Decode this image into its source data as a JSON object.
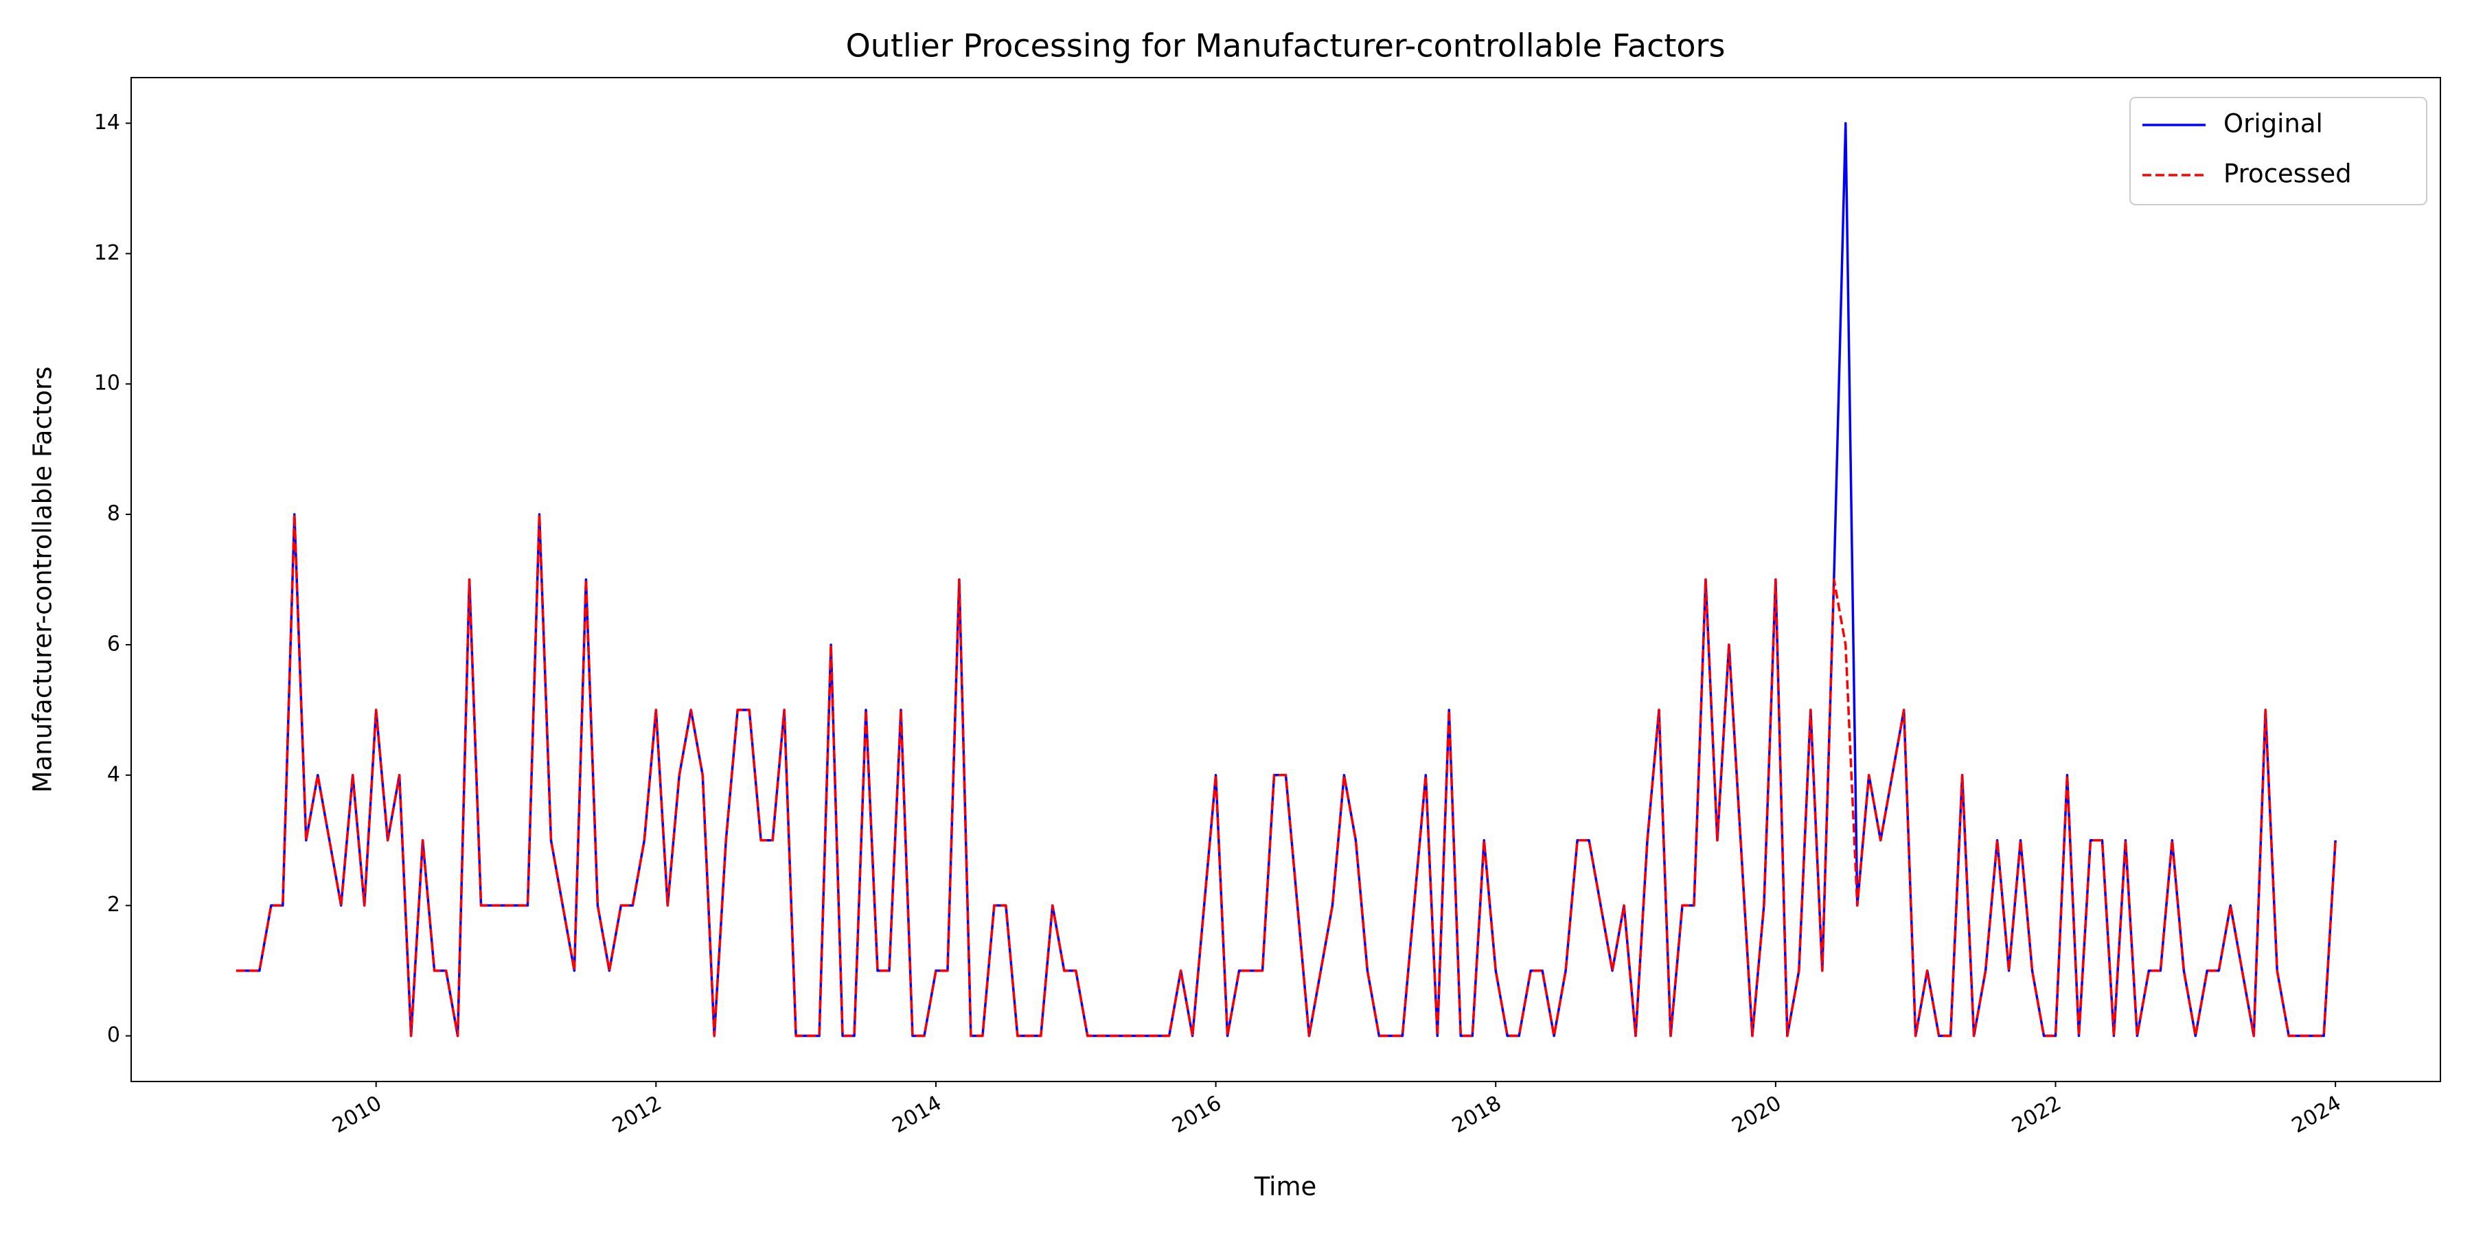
{
  "chart_data": {
    "type": "line",
    "title": "Outlier Processing for Manufacturer-controllable Factors",
    "xlabel": "Time",
    "ylabel": "Manufacturer-controllable Factors",
    "x": [
      "2009-01",
      "2009-02",
      "2009-03",
      "2009-04",
      "2009-05",
      "2009-06",
      "2009-07",
      "2009-08",
      "2009-09",
      "2009-10",
      "2009-11",
      "2009-12",
      "2010-01",
      "2010-02",
      "2010-03",
      "2010-04",
      "2010-05",
      "2010-06",
      "2010-07",
      "2010-08",
      "2010-09",
      "2010-10",
      "2010-11",
      "2010-12",
      "2011-01",
      "2011-02",
      "2011-03",
      "2011-04",
      "2011-05",
      "2011-06",
      "2011-07",
      "2011-08",
      "2011-09",
      "2011-10",
      "2011-11",
      "2011-12",
      "2012-01",
      "2012-02",
      "2012-03",
      "2012-04",
      "2012-05",
      "2012-06",
      "2012-07",
      "2012-08",
      "2012-09",
      "2012-10",
      "2012-11",
      "2012-12",
      "2013-01",
      "2013-02",
      "2013-03",
      "2013-04",
      "2013-05",
      "2013-06",
      "2013-07",
      "2013-08",
      "2013-09",
      "2013-10",
      "2013-11",
      "2013-12",
      "2014-01",
      "2014-02",
      "2014-03",
      "2014-04",
      "2014-05",
      "2014-06",
      "2014-07",
      "2014-08",
      "2014-09",
      "2014-10",
      "2014-11",
      "2014-12",
      "2015-01",
      "2015-02",
      "2015-03",
      "2015-04",
      "2015-05",
      "2015-06",
      "2015-07",
      "2015-08",
      "2015-09",
      "2015-10",
      "2015-11",
      "2015-12",
      "2016-01",
      "2016-02",
      "2016-03",
      "2016-04",
      "2016-05",
      "2016-06",
      "2016-07",
      "2016-08",
      "2016-09",
      "2016-10",
      "2016-11",
      "2016-12",
      "2017-01",
      "2017-02",
      "2017-03",
      "2017-04",
      "2017-05",
      "2017-06",
      "2017-07",
      "2017-08",
      "2017-09",
      "2017-10",
      "2017-11",
      "2017-12",
      "2018-01",
      "2018-02",
      "2018-03",
      "2018-04",
      "2018-05",
      "2018-06",
      "2018-07",
      "2018-08",
      "2018-09",
      "2018-10",
      "2018-11",
      "2018-12",
      "2019-01",
      "2019-02",
      "2019-03",
      "2019-04",
      "2019-05",
      "2019-06",
      "2019-07",
      "2019-08",
      "2019-09",
      "2019-10",
      "2019-11",
      "2019-12",
      "2020-01",
      "2020-02",
      "2020-03",
      "2020-04",
      "2020-05",
      "2020-06",
      "2020-07",
      "2020-08",
      "2020-09",
      "2020-10",
      "2020-11",
      "2020-12",
      "2021-01",
      "2021-02",
      "2021-03",
      "2021-04",
      "2021-05",
      "2021-06",
      "2021-07",
      "2021-08",
      "2021-09",
      "2021-10",
      "2021-11",
      "2021-12",
      "2022-01",
      "2022-02",
      "2022-03",
      "2022-04",
      "2022-05",
      "2022-06",
      "2022-07",
      "2022-08",
      "2022-09",
      "2022-10",
      "2022-11",
      "2022-12",
      "2023-01",
      "2023-02",
      "2023-03",
      "2023-04",
      "2023-05",
      "2023-06",
      "2023-07",
      "2023-08",
      "2023-09",
      "2023-10",
      "2023-11",
      "2023-12",
      "2024-01"
    ],
    "series": [
      {
        "name": "Original",
        "color": "#0000ff",
        "linestyle": "solid",
        "values": [
          1,
          1,
          1,
          2,
          2,
          8,
          3,
          4,
          3,
          2,
          4,
          2,
          5,
          3,
          4,
          0,
          3,
          1,
          1,
          0,
          7,
          2,
          2,
          2,
          2,
          2,
          8,
          3,
          2,
          1,
          7,
          2,
          1,
          2,
          2,
          3,
          5,
          2,
          4,
          5,
          4,
          0,
          3,
          5,
          5,
          3,
          3,
          5,
          0,
          0,
          0,
          6,
          0,
          0,
          5,
          1,
          1,
          5,
          0,
          0,
          1,
          1,
          7,
          0,
          0,
          2,
          2,
          0,
          0,
          0,
          2,
          1,
          1,
          0,
          0,
          0,
          0,
          0,
          0,
          0,
          0,
          1,
          0,
          2,
          4,
          0,
          1,
          1,
          1,
          4,
          4,
          2,
          0,
          1,
          2,
          4,
          3,
          1,
          0,
          0,
          0,
          2,
          4,
          0,
          5,
          0,
          0,
          3,
          1,
          0,
          0,
          1,
          1,
          0,
          1,
          3,
          3,
          2,
          1,
          2,
          0,
          3,
          5,
          0,
          2,
          2,
          7,
          3,
          6,
          3,
          0,
          2,
          7,
          0,
          1,
          5,
          1,
          7,
          14,
          2,
          4,
          3,
          4,
          5,
          0,
          1,
          0,
          0,
          4,
          0,
          1,
          3,
          1,
          3,
          1,
          0,
          0,
          4,
          0,
          3,
          3,
          0,
          3,
          0,
          1,
          1,
          3,
          1,
          0,
          1,
          1,
          2,
          1,
          0,
          5,
          1,
          0,
          0,
          0,
          0,
          3
        ]
      },
      {
        "name": "Processed",
        "color": "#ff0000",
        "linestyle": "dashed",
        "values": [
          1,
          1,
          1,
          2,
          2,
          8,
          3,
          4,
          3,
          2,
          4,
          2,
          5,
          3,
          4,
          0,
          3,
          1,
          1,
          0,
          7,
          2,
          2,
          2,
          2,
          2,
          8,
          3,
          2,
          1,
          7,
          2,
          1,
          2,
          2,
          3,
          5,
          2,
          4,
          5,
          4,
          0,
          3,
          5,
          5,
          3,
          3,
          5,
          0,
          0,
          0,
          6,
          0,
          0,
          5,
          1,
          1,
          5,
          0,
          0,
          1,
          1,
          7,
          0,
          0,
          2,
          2,
          0,
          0,
          0,
          2,
          1,
          1,
          0,
          0,
          0,
          0,
          0,
          0,
          0,
          0,
          1,
          0,
          2,
          4,
          0,
          1,
          1,
          1,
          4,
          4,
          2,
          0,
          1,
          2,
          4,
          3,
          1,
          0,
          0,
          0,
          2,
          4,
          0,
          5,
          0,
          0,
          3,
          1,
          0,
          0,
          1,
          1,
          0,
          1,
          3,
          3,
          2,
          1,
          2,
          0,
          3,
          5,
          0,
          2,
          2,
          7,
          3,
          6,
          3,
          0,
          2,
          7,
          0,
          1,
          5,
          1,
          7,
          6,
          2,
          4,
          3,
          4,
          5,
          0,
          1,
          0,
          0,
          4,
          0,
          1,
          3,
          1,
          3,
          1,
          0,
          0,
          4,
          0,
          3,
          3,
          0,
          3,
          0,
          1,
          1,
          3,
          1,
          0,
          1,
          1,
          2,
          1,
          0,
          5,
          1,
          0,
          0,
          0,
          0,
          3
        ]
      }
    ],
    "xlim": [
      2008.25,
      2024.75
    ],
    "xticks": [
      2010,
      2012,
      2014,
      2016,
      2018,
      2020,
      2022,
      2024
    ],
    "ylim": [
      -0.7,
      14.7
    ],
    "yticks": [
      0,
      2,
      4,
      6,
      8,
      10,
      12,
      14
    ],
    "grid": false,
    "legend": "upper right"
  }
}
